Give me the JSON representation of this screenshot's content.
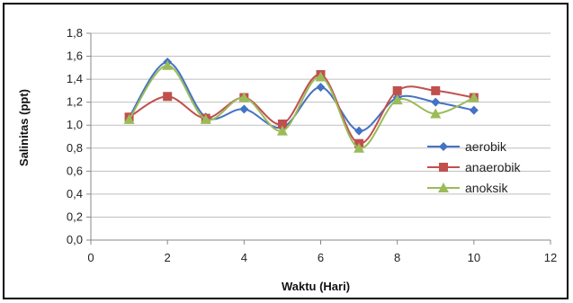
{
  "chart_data": {
    "type": "line",
    "title": "",
    "xlabel": "Waktu (Hari)",
    "ylabel": "Salinitas (ppt)",
    "xlim": [
      0,
      12
    ],
    "ylim": [
      0,
      1.8
    ],
    "x_ticks": [
      "0",
      "2",
      "4",
      "6",
      "8",
      "10",
      "12"
    ],
    "y_ticks": [
      "0,0",
      "0,2",
      "0,4",
      "0,6",
      "0,8",
      "1,0",
      "1,2",
      "1,4",
      "1,6",
      "1,8"
    ],
    "grid": "horizontal",
    "legend_position": "right",
    "x": [
      1,
      2,
      3,
      4,
      5,
      6,
      7,
      8,
      9,
      10
    ],
    "series": [
      {
        "name": "aerobik",
        "color": "#4472C4",
        "marker": "diamond",
        "values": [
          1.07,
          1.55,
          1.07,
          1.14,
          0.98,
          1.33,
          0.95,
          1.24,
          1.2,
          1.13
        ]
      },
      {
        "name": "anaerobik",
        "color": "#C0504D",
        "marker": "square",
        "values": [
          1.07,
          1.25,
          1.06,
          1.24,
          1.01,
          1.44,
          0.84,
          1.3,
          1.3,
          1.24
        ]
      },
      {
        "name": "anoksik",
        "color": "#9BBB59",
        "marker": "triangle",
        "values": [
          1.05,
          1.52,
          1.05,
          1.24,
          0.95,
          1.42,
          0.8,
          1.22,
          1.1,
          1.24
        ]
      }
    ]
  }
}
